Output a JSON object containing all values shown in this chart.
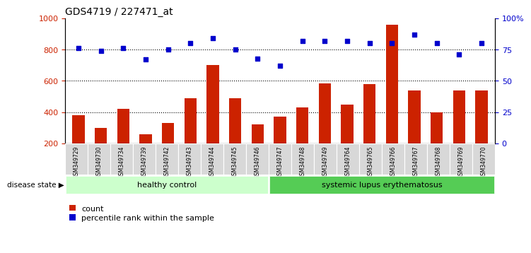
{
  "title": "GDS4719 / 227471_at",
  "samples": [
    "GSM349729",
    "GSM349730",
    "GSM349734",
    "GSM349739",
    "GSM349742",
    "GSM349743",
    "GSM349744",
    "GSM349745",
    "GSM349746",
    "GSM349747",
    "GSM349748",
    "GSM349749",
    "GSM349764",
    "GSM349765",
    "GSM349766",
    "GSM349767",
    "GSM349768",
    "GSM349769",
    "GSM349770"
  ],
  "counts": [
    380,
    300,
    420,
    260,
    330,
    490,
    700,
    490,
    320,
    370,
    430,
    585,
    450,
    580,
    960,
    540,
    400,
    540,
    540
  ],
  "percentiles": [
    76,
    74,
    76,
    67,
    75,
    80,
    84,
    75,
    68,
    62,
    82,
    82,
    82,
    80,
    80,
    87,
    80,
    71,
    80
  ],
  "group1_count": 9,
  "group1_label": "healthy control",
  "group2_label": "systemic lupus erythematosus",
  "bar_color": "#cc2200",
  "dot_color": "#0000cc",
  "ylim_left": [
    200,
    1000
  ],
  "ylim_right": [
    0,
    100
  ],
  "yticks_left": [
    200,
    400,
    600,
    800,
    1000
  ],
  "yticks_right": [
    0,
    25,
    50,
    75,
    100
  ],
  "ytick_labels_right": [
    "0",
    "25",
    "50",
    "75",
    "100%"
  ],
  "grid_yticks": [
    400,
    600,
    800
  ],
  "grid_color": "black",
  "bg_color_labels": "#d8d8d8",
  "group1_bg": "#ccffcc",
  "group2_bg": "#55cc55",
  "disease_state_label": "disease state",
  "legend_count_label": "count",
  "legend_pct_label": "percentile rank within the sample"
}
